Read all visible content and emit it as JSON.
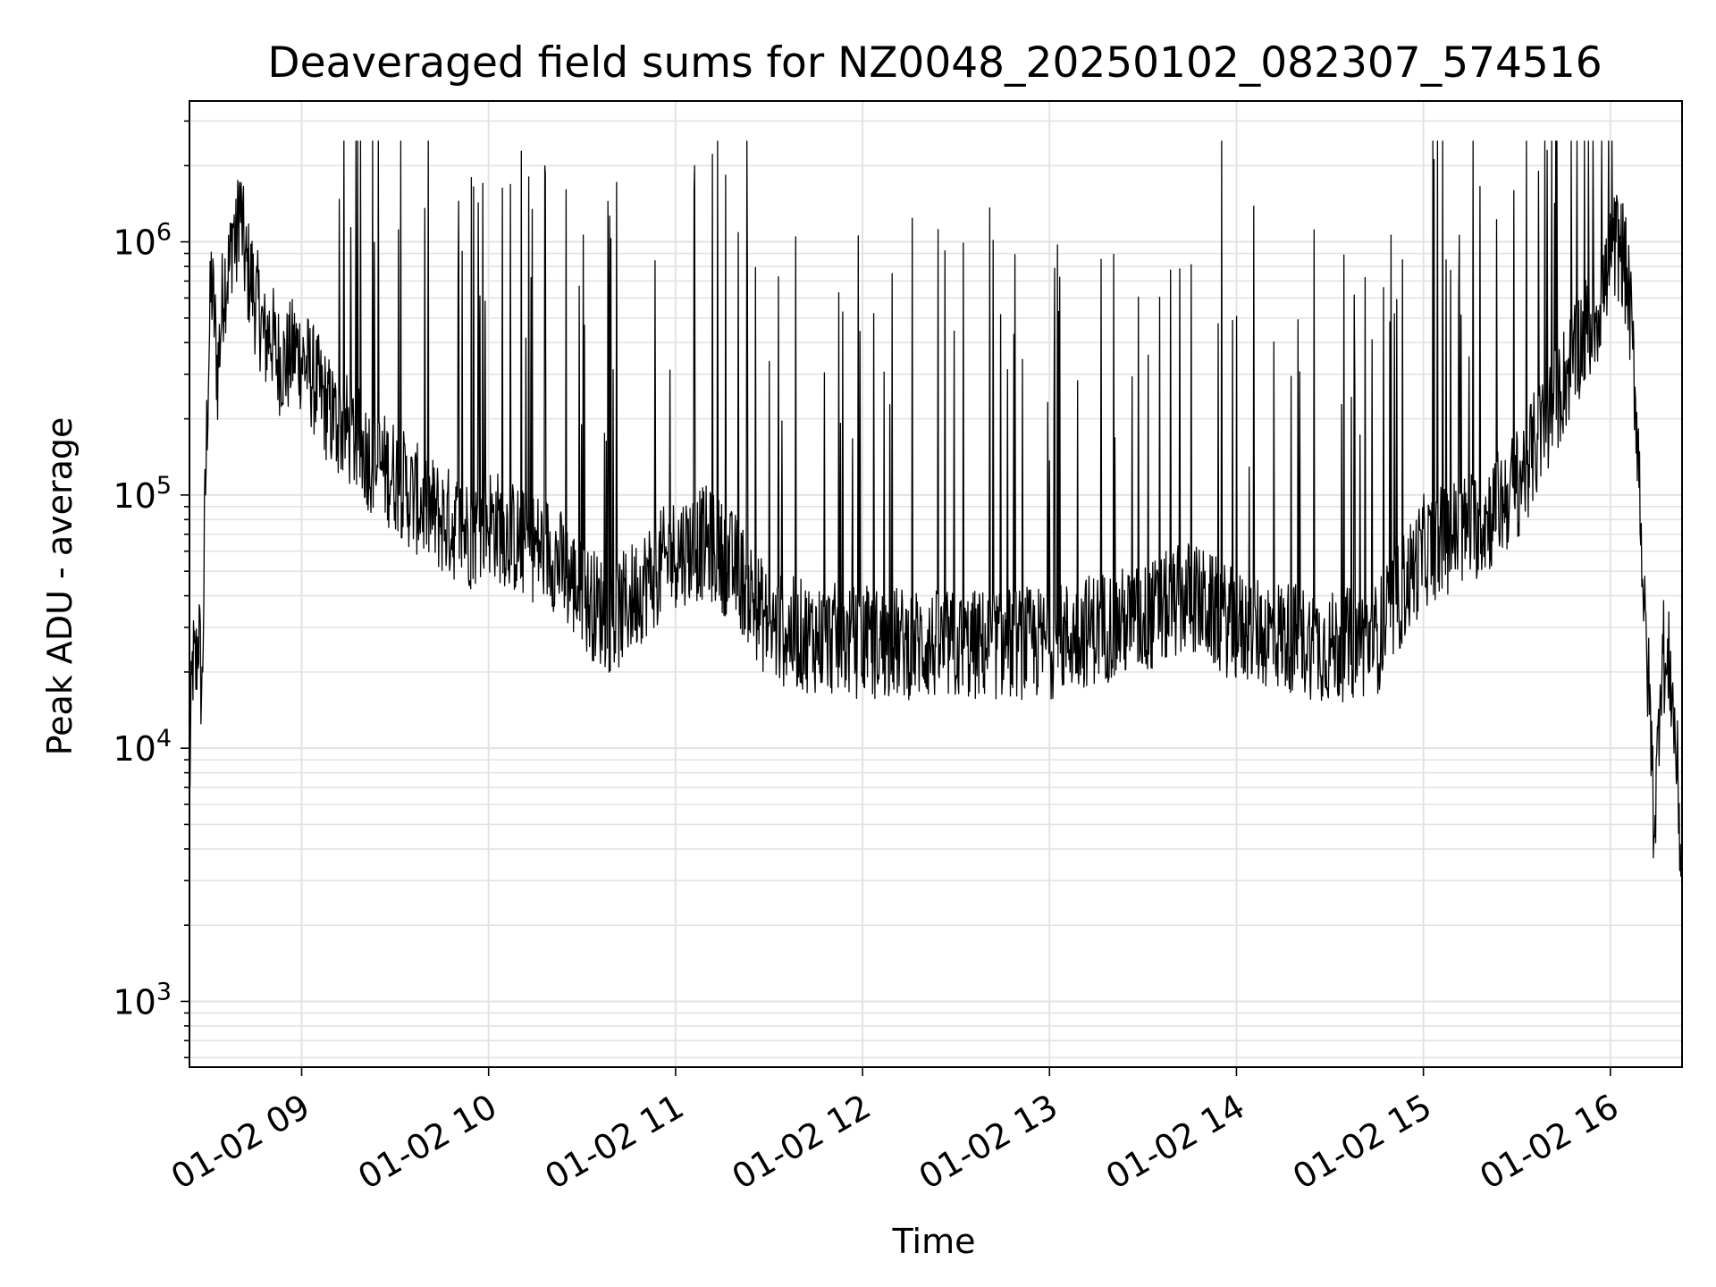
{
  "chart_data": {
    "type": "line",
    "title": "Deaveraged field sums for NZ0048_20250102_082307_574516",
    "xlabel": "Time",
    "ylabel": "Peak ADU - average",
    "y_scale": "log",
    "ylim": [
      550,
      3600000
    ],
    "xlim": [
      "2025-01-02 08:24",
      "2025-01-02 16:23"
    ],
    "grid": true,
    "line_color": "#000000",
    "x_ticks": [
      "01-02 09",
      "01-02 10",
      "01-02 11",
      "01-02 12",
      "01-02 13",
      "01-02 14",
      "01-02 15",
      "01-02 16"
    ],
    "y_ticks": [
      {
        "base": "10",
        "exp": "3",
        "value": 1000
      },
      {
        "base": "10",
        "exp": "4",
        "value": 10000
      },
      {
        "base": "10",
        "exp": "5",
        "value": 100000
      },
      {
        "base": "10",
        "exp": "6",
        "value": 1000000
      }
    ],
    "series": [
      {
        "x": [
          "08:24",
          "08:25",
          "08:26",
          "08:27",
          "08:28",
          "08:29",
          "08:30",
          "08:31",
          "08:32",
          "08:33",
          "08:35",
          "08:37",
          "08:38",
          "08:39",
          "08:40",
          "08:42",
          "08:44",
          "08:45",
          "08:47",
          "08:48",
          "08:50",
          "08:52",
          "08:55",
          "08:58",
          "09:00",
          "09:03",
          "09:06",
          "09:10",
          "09:15",
          "09:20",
          "09:25",
          "09:30",
          "09:35",
          "09:40",
          "09:45",
          "09:50",
          "09:55",
          "10:00",
          "10:10",
          "10:20",
          "10:30",
          "10:40",
          "10:50",
          "11:00",
          "11:10",
          "11:20",
          "11:30",
          "11:40",
          "11:50",
          "12:00",
          "12:15",
          "12:30",
          "12:45",
          "13:00",
          "13:15",
          "13:30",
          "13:45",
          "14:00",
          "14:15",
          "14:30",
          "14:45",
          "15:00",
          "15:10",
          "15:20",
          "15:30",
          "15:40",
          "15:45",
          "15:50",
          "15:55",
          "16:00",
          "16:02",
          "16:04",
          "16:06",
          "16:07",
          "16:08",
          "16:09",
          "16:10",
          "16:11",
          "16:12",
          "16:13",
          "16:14",
          "16:15",
          "16:16",
          "16:17",
          "16:18",
          "16:19",
          "16:20",
          "16:21",
          "16:22",
          "16:23"
        ],
        "y": [
          7000,
          22000,
          20000,
          30000,
          15000,
          90000,
          300000,
          700000,
          500000,
          300000,
          700000,
          800000,
          1200000,
          900000,
          1500000,
          800000,
          700000,
          600000,
          500000,
          400000,
          450000,
          350000,
          330000,
          380000,
          350000,
          300000,
          250000,
          200000,
          180000,
          150000,
          130000,
          120000,
          100000,
          90000,
          80000,
          75000,
          70000,
          80000,
          65000,
          60000,
          40000,
          32000,
          45000,
          60000,
          65000,
          50000,
          30000,
          28000,
          27000,
          26000,
          26000,
          25000,
          26000,
          26000,
          30000,
          32000,
          40000,
          30000,
          28000,
          25000,
          27000,
          60000,
          70000,
          80000,
          110000,
          200000,
          280000,
          400000,
          500000,
          800000,
          1000000,
          900000,
          600000,
          400000,
          250000,
          150000,
          70000,
          30000,
          20000,
          12000,
          5000,
          8000,
          20000,
          25000,
          18000,
          22000,
          15000,
          10000,
          6000,
          2700
        ]
      }
    ]
  }
}
